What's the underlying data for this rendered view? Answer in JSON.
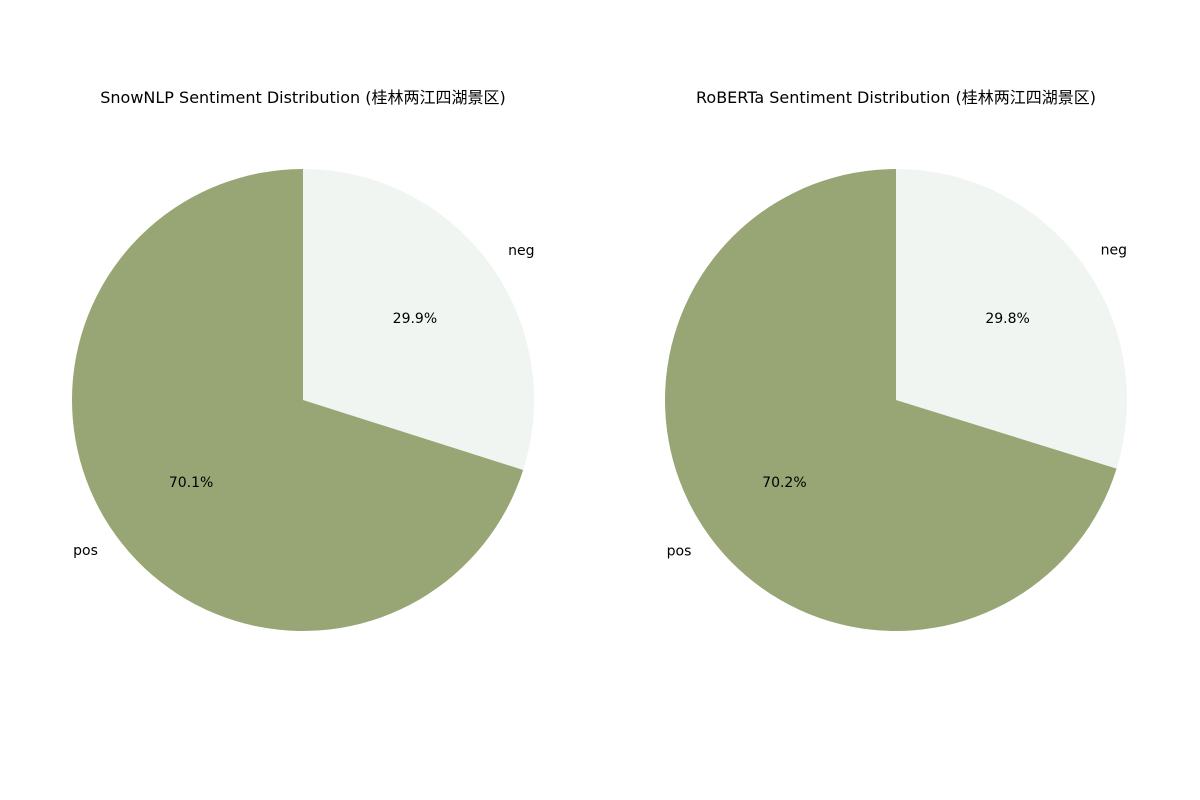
{
  "chart_data": [
    {
      "type": "pie",
      "title": "SnowNLP Sentiment Distribution (桂林两江四湖景区)",
      "start_angle": "top (90°)",
      "direction": "clockwise",
      "slices": [
        {
          "label": "neg",
          "value": 29.9,
          "pct_label": "29.9%",
          "color": "#f0f5f1"
        },
        {
          "label": "pos",
          "value": 70.1,
          "pct_label": "70.1%",
          "color": "#97a674"
        }
      ]
    },
    {
      "type": "pie",
      "title": "RoBERTa Sentiment Distribution (桂林两江四湖景区)",
      "start_angle": "top (90°)",
      "direction": "clockwise",
      "slices": [
        {
          "label": "neg",
          "value": 29.8,
          "pct_label": "29.8%",
          "color": "#f0f5f1"
        },
        {
          "label": "pos",
          "value": 70.2,
          "pct_label": "70.2%",
          "color": "#97a674"
        }
      ]
    }
  ]
}
